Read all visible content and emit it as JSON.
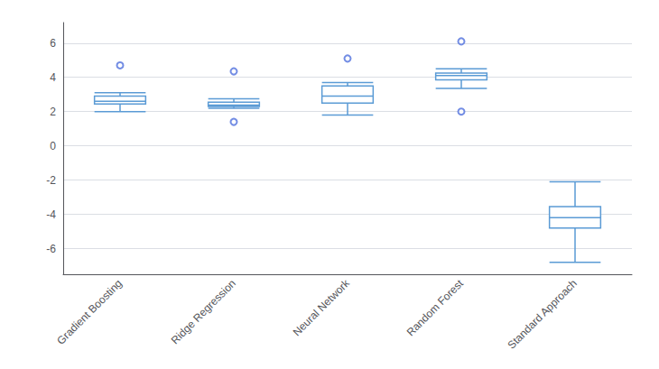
{
  "chart_data": {
    "type": "boxplot",
    "categories": [
      "Gradient Boosting",
      "Ridge Regression",
      "Neural Network",
      "Random Forest",
      "Standard Approach"
    ],
    "values": [
      [
        2.0,
        2.45,
        2.6,
        2.9,
        3.1
      ],
      [
        2.2,
        2.3,
        2.38,
        2.55,
        2.75
      ],
      [
        1.8,
        2.5,
        2.9,
        3.5,
        3.7
      ],
      [
        3.35,
        3.85,
        4.1,
        4.25,
        4.5
      ],
      [
        -6.8,
        -4.8,
        -4.2,
        -3.55,
        -2.1
      ]
    ],
    "fliers": [
      [
        4.7
      ],
      [
        4.35,
        1.4
      ],
      [
        5.1
      ],
      [
        6.1,
        2.0
      ],
      []
    ],
    "color": "#5b9bd5",
    "ylim": [
      -7.5,
      7.2
    ],
    "yticks": [
      -6,
      -4,
      -2,
      0,
      2,
      4,
      6
    ],
    "grid": true
  }
}
